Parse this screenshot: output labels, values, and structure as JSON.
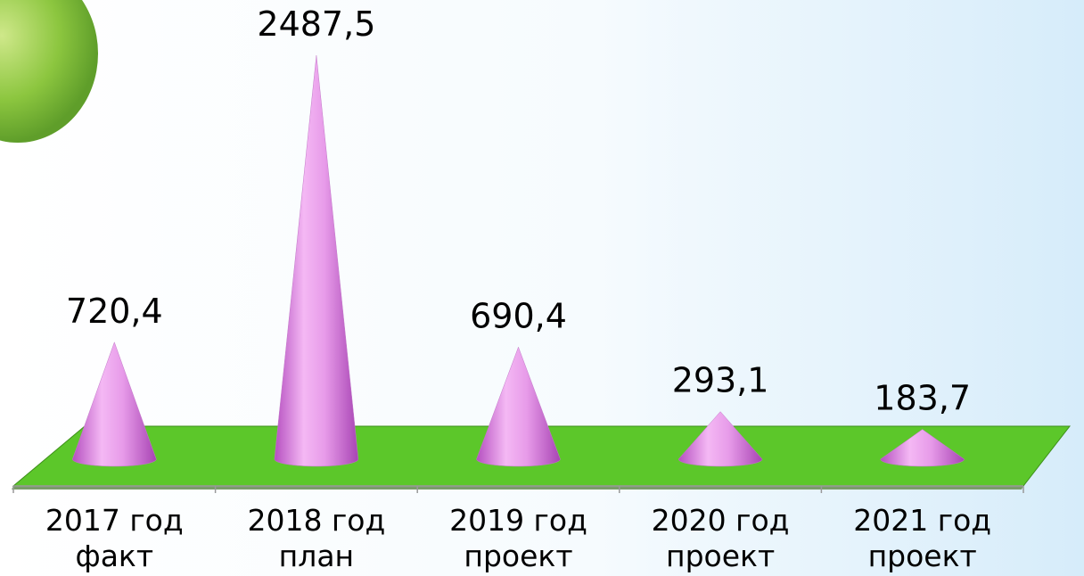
{
  "chart_data": {
    "type": "cone",
    "categories": [
      "2017 год\nфакт",
      "2018 год\nплан",
      "2019 год\nпроект",
      "2020 год\nпроект",
      "2021 год\nпроект"
    ],
    "values": [
      720.4,
      2487.5,
      690.4,
      293.1,
      183.7
    ],
    "value_labels": [
      "720,4",
      "2487,5",
      "690,4",
      "293,1",
      "183,7"
    ],
    "color": "#e79be9"
  }
}
